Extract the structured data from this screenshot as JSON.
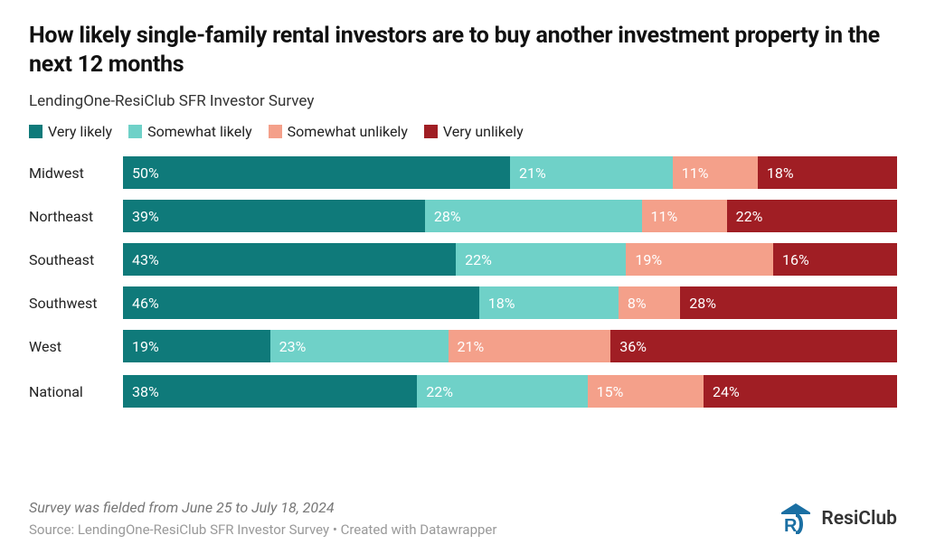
{
  "title": "How likely single-family rental investors are to buy another investment property in the next 12 months",
  "subtitle": "LendingOne-ResiClub SFR Investor Survey",
  "legend": [
    {
      "label": "Very likely",
      "color": "#0f7a7a"
    },
    {
      "label": "Somewhat likely",
      "color": "#6fd1c8"
    },
    {
      "label": "Somewhat unlikely",
      "color": "#f4a08a"
    },
    {
      "label": "Very unlikely",
      "color": "#a01e24"
    }
  ],
  "colors": {
    "very_likely": "#0f7a7a",
    "somewhat_likely": "#6fd1c8",
    "somewhat_unlikely": "#f4a08a",
    "very_unlikely": "#a01e24",
    "bg": "#ffffff",
    "text": "#222222",
    "muted": "#888888"
  },
  "chart": {
    "type": "stacked-bar-horizontal",
    "label_fontsize": 16,
    "value_fontsize": 16,
    "rows": [
      {
        "label": "Midwest",
        "values": [
          50,
          21,
          11,
          18
        ],
        "extra_top_gap": false
      },
      {
        "label": "Northeast",
        "values": [
          39,
          28,
          11,
          22
        ],
        "extra_top_gap": false
      },
      {
        "label": "Southeast",
        "values": [
          43,
          22,
          19,
          16
        ],
        "extra_top_gap": false
      },
      {
        "label": "Southwest",
        "values": [
          46,
          18,
          8,
          28
        ],
        "extra_top_gap": false
      },
      {
        "label": "West",
        "values": [
          19,
          23,
          21,
          36
        ],
        "extra_top_gap": false,
        "hidden_west_tail": true
      },
      {
        "label": "National",
        "values": [
          38,
          22,
          15,
          24
        ],
        "extra_top_gap": true,
        "hidden_nat_tail": true
      }
    ]
  },
  "note": "Survey was fielded from June 25 to July 18, 2024",
  "source": "Source: LendingOne-ResiClub SFR Investor Survey • Created with Datawrapper",
  "brand": "ResiClub"
}
